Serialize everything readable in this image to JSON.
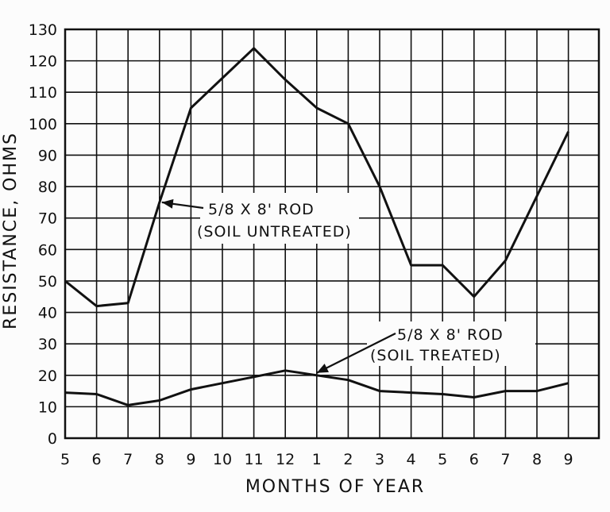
{
  "chart_data": {
    "type": "line",
    "title": "",
    "xlabel": "MONTHS OF YEAR",
    "ylabel": "RESISTANCE, OHMS",
    "categories": [
      "5",
      "6",
      "7",
      "8",
      "9",
      "10",
      "11",
      "12",
      "1",
      "2",
      "3",
      "4",
      "5",
      "6",
      "7",
      "8",
      "9"
    ],
    "ylim": [
      0,
      130
    ],
    "yticks": [
      0,
      10,
      20,
      30,
      40,
      50,
      60,
      70,
      80,
      90,
      100,
      110,
      120,
      130
    ],
    "grid": true,
    "series": [
      {
        "name": "5/8 X 8' ROD (SOIL UNTREATED)",
        "values": [
          50,
          42,
          43,
          75,
          105,
          114.5,
          124,
          114,
          105,
          100,
          80,
          55,
          55,
          45,
          56.5,
          77,
          97.5
        ]
      },
      {
        "name": "5/8 X 8' ROD (SOIL TREATED)",
        "values": [
          14.5,
          14,
          10.5,
          12,
          15.5,
          17.5,
          19.5,
          21.5,
          20,
          18.5,
          15,
          14.5,
          14,
          13,
          15,
          15,
          17.5
        ]
      }
    ],
    "annotations": [
      {
        "series": 0,
        "line1": "5/8 X 8' ROD",
        "line2": "(SOIL UNTREATED)"
      },
      {
        "series": 1,
        "line1": "5/8 X 8' ROD",
        "line2": "(SOIL TREATED)"
      }
    ]
  }
}
